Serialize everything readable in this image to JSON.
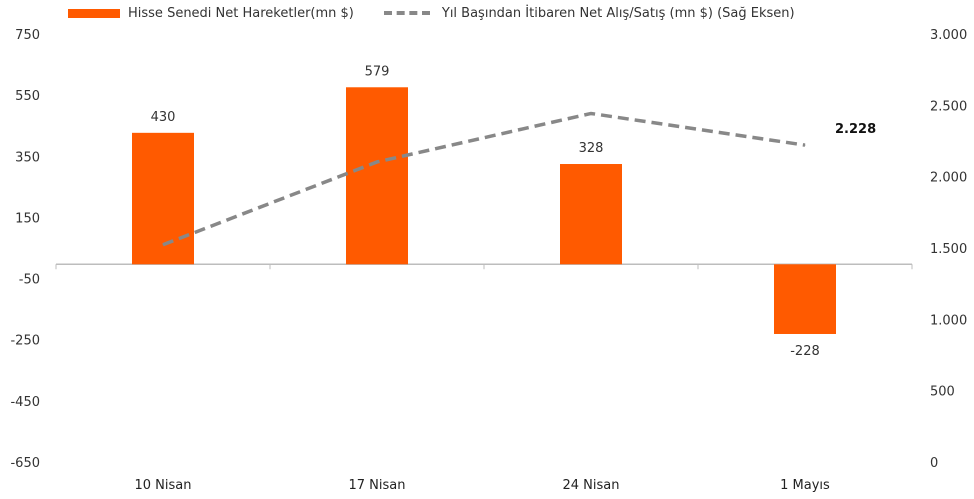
{
  "colors": {
    "bar": "#ff5a00",
    "line": "#888888",
    "axis": "#bdbdbd"
  },
  "legend": {
    "bar_label": "Hisse Senedi Net Hareketler(mn $)",
    "line_label": "Yıl Başından İtibaren Net Alış/Satış (mn $) (Sağ Eksen)"
  },
  "chart_data": {
    "type": "bar",
    "categories": [
      "10 Nisan",
      "17 Nisan",
      "24 Nisan",
      "1 Mayıs"
    ],
    "series": [
      {
        "name": "Hisse Senedi Net Hareketler(mn $)",
        "type": "bar",
        "axis": "left",
        "values": [
          430,
          579,
          328,
          -228
        ],
        "data_labels": [
          "430",
          "579",
          "328",
          "-228"
        ]
      },
      {
        "name": "Yıl Başından İtibaren Net Alış/Satış (mn $) (Sağ Eksen)",
        "type": "line",
        "style": "dashed",
        "axis": "right",
        "values": [
          1530,
          2110,
          2450,
          2228
        ],
        "data_labels": [
          "",
          "",
          "",
          "2.228"
        ]
      }
    ],
    "y_left": {
      "ticks": [
        750,
        550,
        350,
        150,
        -50,
        -250,
        -450,
        -650
      ],
      "tick_labels": [
        "750",
        "550",
        "350",
        "150",
        "-50",
        "-250",
        "-450",
        "-650"
      ],
      "ylim": [
        -650,
        750
      ]
    },
    "y_right": {
      "ticks": [
        3000,
        2500,
        2000,
        1500,
        1000,
        500,
        0
      ],
      "tick_labels": [
        "3.000",
        "2.500",
        "2.000",
        "1.500",
        "1.000",
        "500",
        "0"
      ],
      "ylim": [
        0,
        3000
      ]
    },
    "grid": false,
    "legend_position": "top"
  }
}
